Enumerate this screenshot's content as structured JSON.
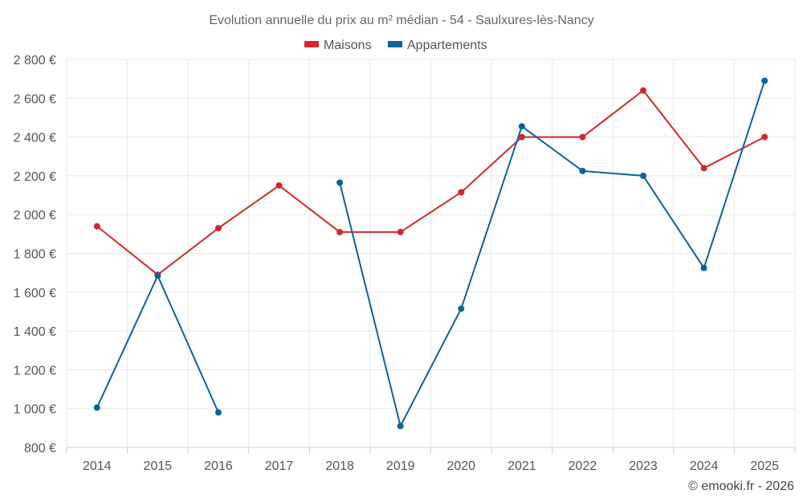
{
  "chart_data": {
    "type": "line",
    "title": "Evolution annuelle du prix au m² médian - 54 - Saulxures-lès-Nancy",
    "categories": [
      "2014",
      "2015",
      "2016",
      "2017",
      "2018",
      "2019",
      "2020",
      "2021",
      "2022",
      "2023",
      "2024",
      "2025"
    ],
    "ylim": [
      800,
      2800
    ],
    "yticks": [
      800,
      1000,
      1200,
      1400,
      1600,
      1800,
      2000,
      2200,
      2400,
      2600,
      2800
    ],
    "y_tick_labels": [
      "800 €",
      "1 000 €",
      "1 200 €",
      "1 400 €",
      "1 600 €",
      "1 800 €",
      "2 000 €",
      "2 200 €",
      "2 400 €",
      "2 600 €",
      "2 800 €"
    ],
    "grid": true,
    "legend_position": "top-center",
    "series": [
      {
        "name": "Maisons",
        "color": "#d62728",
        "values": [
          1940,
          1690,
          1930,
          2150,
          1910,
          1910,
          2115,
          2400,
          2400,
          2640,
          2240,
          2400
        ]
      },
      {
        "name": "Appartements",
        "color": "#0a6496",
        "values": [
          1005,
          1685,
          980,
          null,
          2165,
          910,
          1515,
          2455,
          2225,
          2200,
          1725,
          2690
        ]
      }
    ]
  },
  "credit": "© emooki.fr - 2026"
}
